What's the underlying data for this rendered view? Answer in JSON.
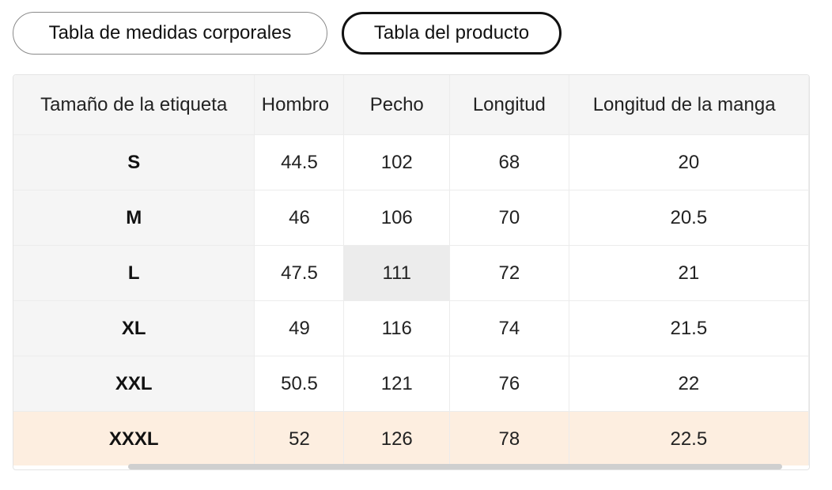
{
  "tabs": {
    "body_label": "Tabla de medidas corporales",
    "product_label": "Tabla del producto",
    "active": "product"
  },
  "table": {
    "headers": [
      "Tamaño de la etiqueta",
      "Hombro",
      "Pecho",
      "Longitud",
      "Longitud de la manga"
    ],
    "rows": [
      [
        "S",
        "44.5",
        "102",
        "68",
        "20"
      ],
      [
        "M",
        "46",
        "106",
        "70",
        "20.5"
      ],
      [
        "L",
        "47.5",
        "111",
        "72",
        "21"
      ],
      [
        "XL",
        "49",
        "116",
        "74",
        "21.5"
      ],
      [
        "XXL",
        "50.5",
        "121",
        "76",
        "22"
      ],
      [
        "XXXL",
        "52",
        "126",
        "78",
        "22.5"
      ]
    ],
    "highlighted_size": "XXXL"
  },
  "colors": {
    "header_bg": "#f5f5f5",
    "highlight_row": "#fdeee0",
    "active_tab_border": "#111111"
  }
}
